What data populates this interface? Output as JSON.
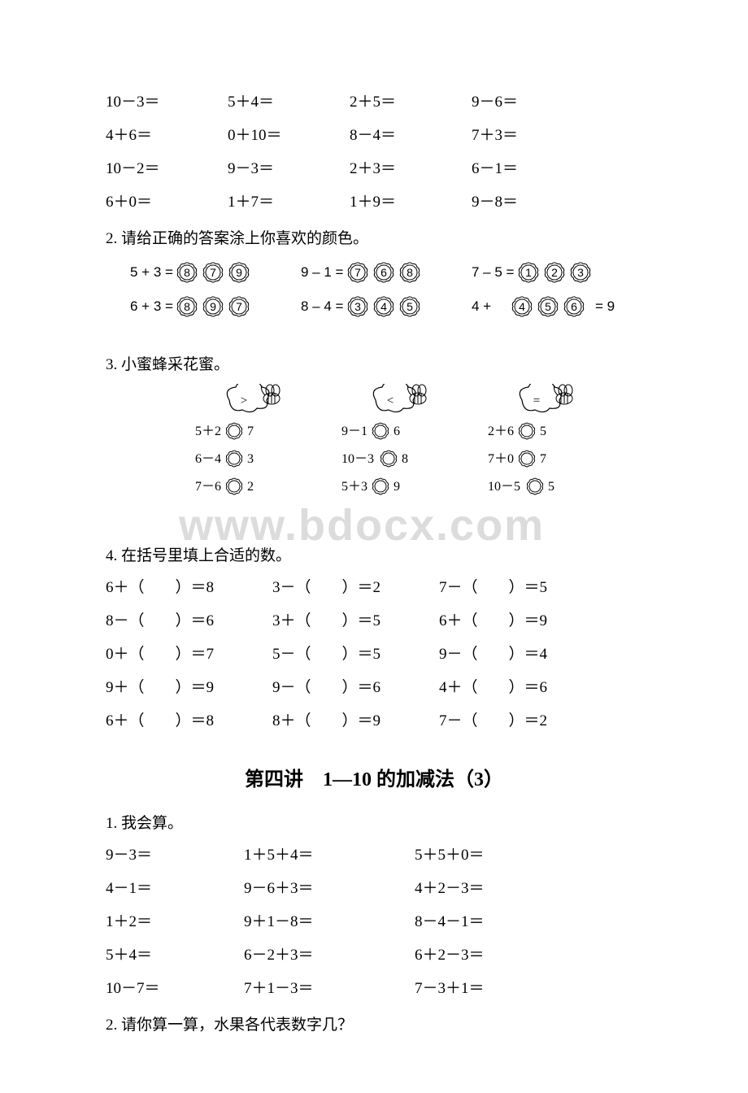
{
  "colors": {
    "text": "#000000",
    "background": "#ffffff",
    "watermark": "#dcdcdc",
    "svg_stroke": "#000000"
  },
  "section1_rows": [
    [
      "10－3＝",
      "5＋4＝",
      "2＋5＝",
      "9－6＝"
    ],
    [
      "4＋6＝",
      "0＋10＝",
      "8－4＝",
      "7＋3＝"
    ],
    [
      "10－2＝",
      "9－3＝",
      "2＋3＝",
      "6－1＝"
    ],
    [
      "6＋0＝",
      "1＋7＝",
      "1＋9＝",
      "9－8＝"
    ]
  ],
  "q2": {
    "label": "2. 请给正确的答案涂上你喜欢的颜色。",
    "items": [
      {
        "lhs": "5 + 3 =",
        "opts": [
          "8",
          "7",
          "9"
        ]
      },
      {
        "lhs": "9 – 1 =",
        "opts": [
          "7",
          "6",
          "8"
        ]
      },
      {
        "lhs": "7 – 5 =",
        "opts": [
          "1",
          "2",
          "3"
        ]
      },
      {
        "lhs": "6 + 3 =",
        "opts": [
          "8",
          "9",
          "7"
        ]
      },
      {
        "lhs": "8 – 4 =",
        "opts": [
          "3",
          "4",
          "5"
        ]
      },
      {
        "lhs": "4 +",
        "opts": [
          "4",
          "5",
          "6"
        ],
        "rhs": "= 9"
      }
    ]
  },
  "q3": {
    "label": "3. 小蜜蜂采花蜜。",
    "bees": [
      ">",
      "<",
      "="
    ],
    "rows": [
      [
        {
          "l": "5＋2",
          "r": "7"
        },
        {
          "l": "9－1",
          "r": "6"
        },
        {
          "l": "2＋6",
          "r": "5"
        }
      ],
      [
        {
          "l": "6－4",
          "r": "3"
        },
        {
          "l": "10－3",
          "r": "8"
        },
        {
          "l": "7＋0",
          "r": "7"
        }
      ],
      [
        {
          "l": "7－6",
          "r": "2"
        },
        {
          "l": "5＋3",
          "r": "9"
        },
        {
          "l": "10－5",
          "r": "5"
        }
      ]
    ]
  },
  "q4": {
    "label": "4. 在括号里填上合适的数。",
    "rows": [
      [
        "6＋（　　）＝8",
        "3－（　　）＝2",
        "7－（　　）＝5"
      ],
      [
        "8－（　　）＝6",
        "3＋（　　）＝5",
        "6＋（　　）＝9"
      ],
      [
        "0＋（　　）＝7",
        "5－（　　）＝5",
        "9－（　　）＝4"
      ],
      [
        "9＋（　　）＝9",
        "9－（　　）＝6",
        "4＋（　　）＝6"
      ],
      [
        "6＋（　　）＝8",
        "8＋（　　）＝9",
        "7－（　　）＝2"
      ]
    ]
  },
  "heading": "第四讲　1—10 的加减法（3）",
  "s4q1": {
    "label": "1. 我会算。",
    "rows": [
      [
        "9－3＝",
        "1＋5＋4＝",
        "5＋5＋0＝"
      ],
      [
        "4－1＝",
        "9－6＋3＝",
        "4＋2－3＝"
      ],
      [
        "1＋2＝",
        "9＋1－8＝",
        "8－4－1＝"
      ],
      [
        "5＋4＝",
        "6－2＋3＝",
        "6＋2－3＝"
      ],
      [
        "10－7＝",
        "7＋1－3＝",
        "7－3＋1＝"
      ]
    ]
  },
  "s4q2_label": "2. 请你算一算，水果各代表数字几？",
  "watermark": "www.bdocx.com"
}
